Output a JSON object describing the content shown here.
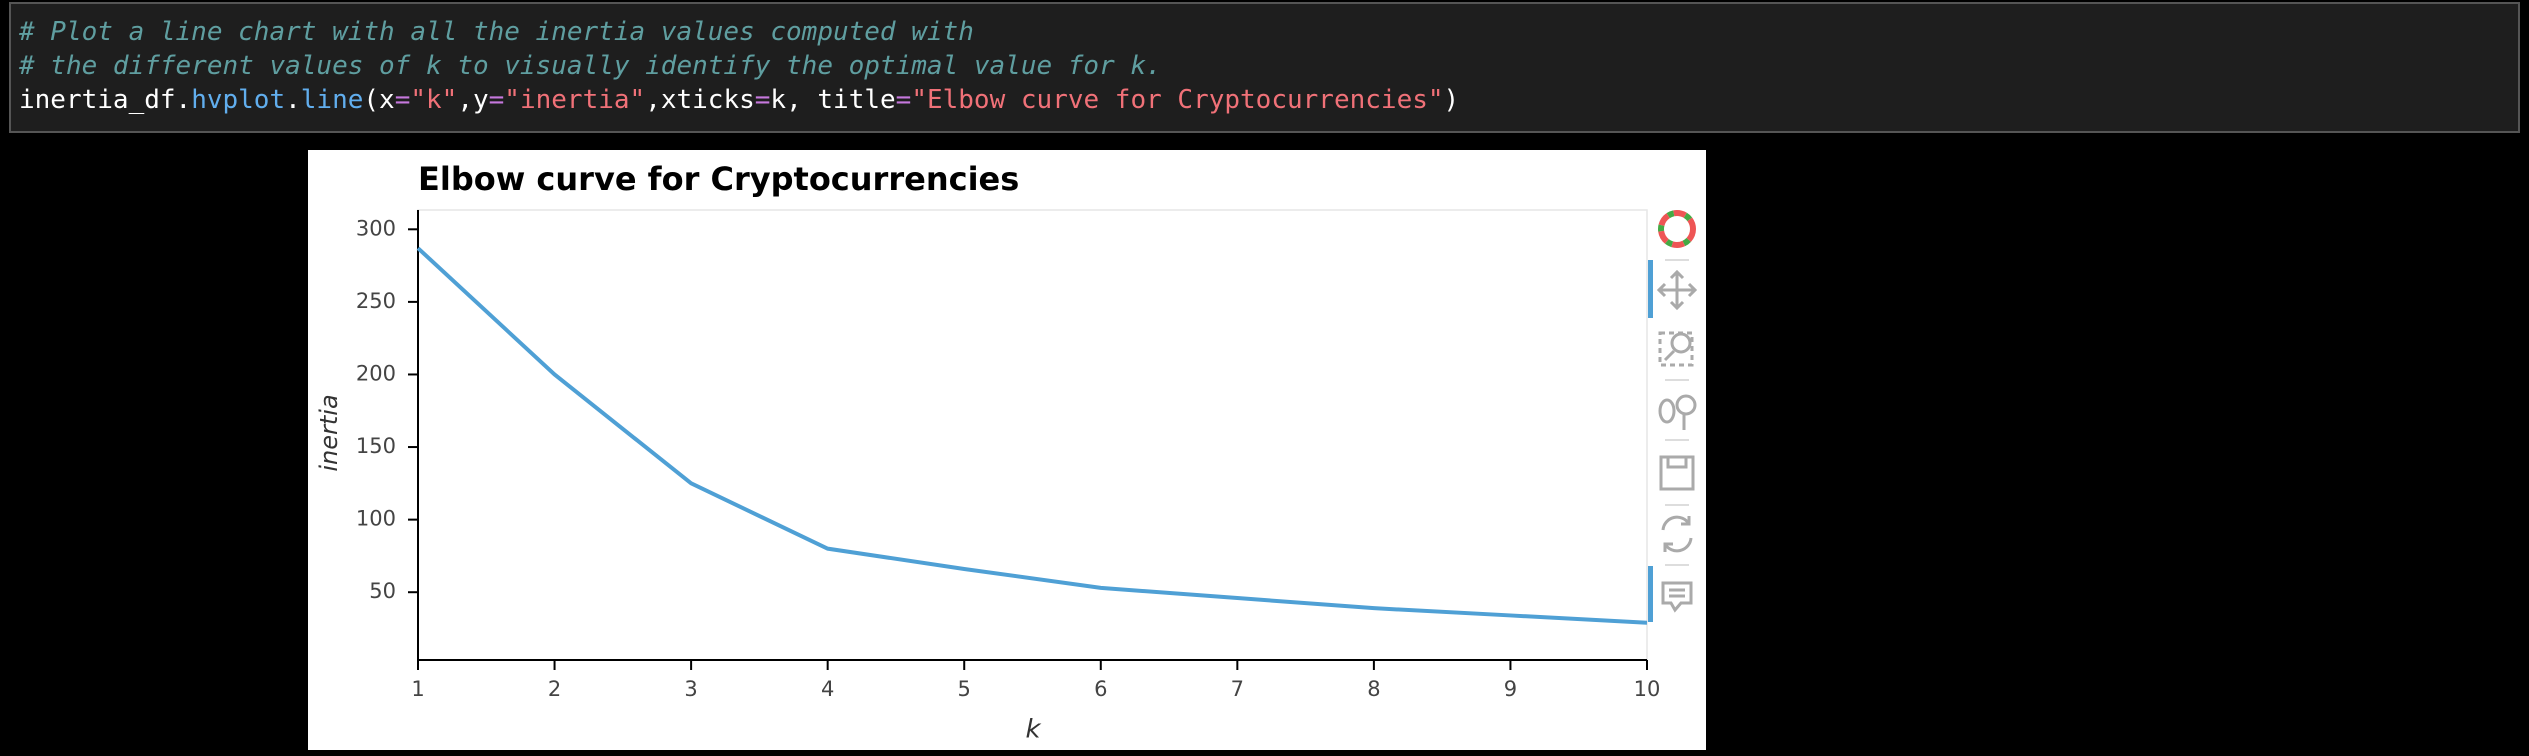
{
  "code_cell": {
    "lines": [
      [
        {
          "text": "# Plot a line chart with all the inertia values computed with",
          "color": "#5f9ea0",
          "italic": true
        }
      ],
      [
        {
          "text": "# the different values of k to visually identify the optimal value for k.",
          "color": "#5f9ea0",
          "italic": true
        }
      ],
      [
        {
          "text": "inertia_df.",
          "color": "#ffffff"
        },
        {
          "text": "hvplot",
          "color": "#61aeee"
        },
        {
          "text": ".",
          "color": "#ffffff"
        },
        {
          "text": "line",
          "color": "#61aeee"
        },
        {
          "text": "(x",
          "color": "#ffffff"
        },
        {
          "text": "=",
          "color": "#c678dd"
        },
        {
          "text": "\"k\"",
          "color": "#f07178"
        },
        {
          "text": ",y",
          "color": "#ffffff"
        },
        {
          "text": "=",
          "color": "#c678dd"
        },
        {
          "text": "\"inertia\"",
          "color": "#f07178"
        },
        {
          "text": ",xticks",
          "color": "#ffffff"
        },
        {
          "text": "=",
          "color": "#c678dd"
        },
        {
          "text": "k, title",
          "color": "#ffffff"
        },
        {
          "text": "=",
          "color": "#c678dd"
        },
        {
          "text": "\"Elbow curve for Cryptocurrencies\"",
          "color": "#f07178"
        },
        {
          "text": ")",
          "color": "#ffffff"
        }
      ]
    ]
  },
  "chart_data": {
    "type": "line",
    "title": "Elbow curve for Cryptocurrencies",
    "x_label": "k",
    "y_label": "inertia",
    "x": [
      1,
      2,
      3,
      4,
      5,
      6,
      7,
      8,
      9,
      10
    ],
    "series": [
      {
        "name": "inertia",
        "color": "#4fa0d5",
        "values": [
          287,
          200,
          125,
          80,
          66,
          53,
          46,
          39,
          34,
          29
        ]
      }
    ],
    "xlim": [
      1,
      10
    ],
    "xticks": [
      1,
      2,
      3,
      4,
      5,
      6,
      7,
      8,
      9,
      10
    ],
    "ylim": [
      3.3,
      313.3
    ],
    "yticks": [
      50,
      100,
      150,
      200,
      250,
      300
    ]
  }
}
